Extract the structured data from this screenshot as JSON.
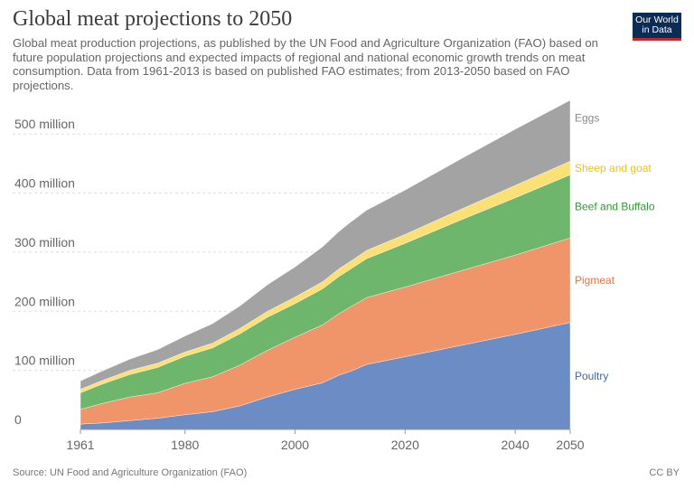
{
  "header": {
    "title": "Global meat projections to 2050",
    "subtitle": "Global meat production projections, as published by the UN Food and Agriculture Organization (FAO) based on future population projections and expected impacts of regional and national economic growth trends on meat consumption. Data from 1961-2013 is based on published FAO estimates; from 2013-2050 based on FAO projections.",
    "logo_line1": "Our World",
    "logo_line2": "in Data"
  },
  "footer": {
    "source": "Source: UN Food and Agriculture Organization (FAO)",
    "license": "CC BY"
  },
  "chart_data": {
    "type": "area",
    "stacked": true,
    "x": [
      1961,
      1965,
      1970,
      1975,
      1980,
      1985,
      1990,
      1995,
      2000,
      2005,
      2008,
      2010,
      2013,
      2020,
      2030,
      2040,
      2050
    ],
    "series": [
      {
        "name": "Poultry",
        "color": "#6b8cc4",
        "values": [
          9,
          11,
          15,
          19,
          25,
          30,
          40,
          55,
          68,
          79,
          92,
          98,
          110,
          123,
          142,
          161,
          181
        ]
      },
      {
        "name": "Pigmeat",
        "color": "#f0946a",
        "values": [
          25,
          33,
          40,
          43,
          53,
          59,
          69,
          79,
          88,
          98,
          104,
          109,
          113,
          118,
          126,
          134,
          143
        ]
      },
      {
        "name": "Beef and Buffalo",
        "color": "#6fb66d",
        "values": [
          28,
          33,
          38,
          43,
          46,
          49,
          53,
          56,
          57,
          61,
          63,
          64,
          66,
          74,
          86,
          97,
          107
        ]
      },
      {
        "name": "Sheep and goat",
        "color": "#fbe076",
        "values": [
          6,
          6,
          7,
          7,
          7,
          8,
          9,
          10,
          11,
          12,
          13,
          13,
          14,
          15,
          18,
          21,
          23
        ]
      },
      {
        "name": "Eggs",
        "color": "#a3a3a3",
        "values": [
          14,
          16,
          19,
          23,
          27,
          33,
          38,
          45,
          51,
          59,
          63,
          66,
          68,
          75,
          85,
          95,
          103
        ]
      }
    ],
    "xlabel": "",
    "ylabel": "",
    "xticks": [
      "1961",
      "1980",
      "2000",
      "2020",
      "2040",
      "2050"
    ],
    "yticks": [
      "0",
      "100 million",
      "200 million",
      "300 million",
      "400 million",
      "500 million"
    ],
    "ylim": [
      0,
      560
    ],
    "xlim": [
      1961,
      2050
    ],
    "grid": "horizontal dashed",
    "legend": "right, inline labels"
  }
}
